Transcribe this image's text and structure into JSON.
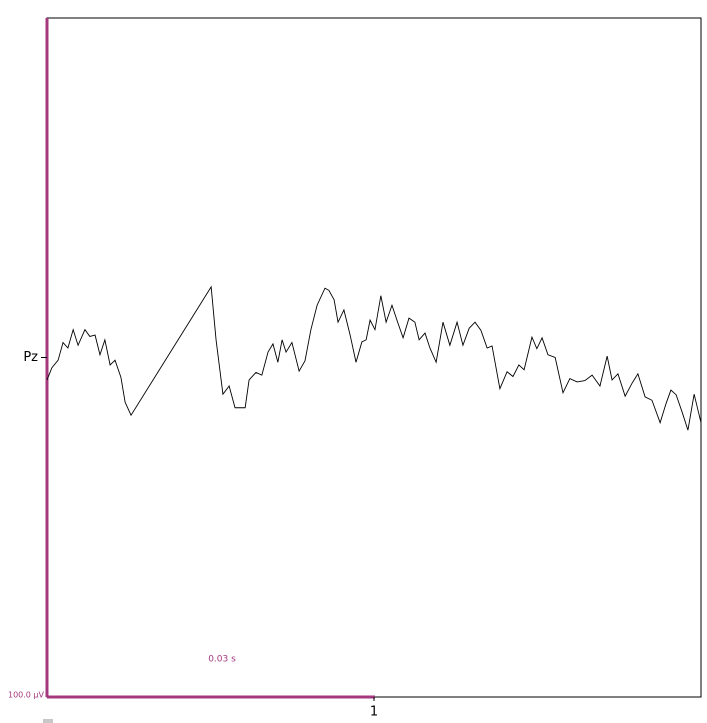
{
  "chart_data": {
    "type": "line",
    "color": "#000000",
    "scale_color": "#a3387e",
    "time_scale_label": "0.03 s",
    "amplitude_scale_label": "100.0 µV",
    "x": [
      0,
      0.015,
      0.034,
      0.049,
      0.064,
      0.08,
      0.095,
      0.116,
      0.131,
      0.147,
      0.162,
      0.177,
      0.193,
      0.208,
      0.226,
      0.239,
      0.257,
      0.502,
      0.517,
      0.538,
      0.557,
      0.575,
      0.606,
      0.618,
      0.639,
      0.657,
      0.676,
      0.691,
      0.706,
      0.719,
      0.731,
      0.749,
      0.771,
      0.789,
      0.807,
      0.826,
      0.85,
      0.862,
      0.878,
      0.89,
      0.908,
      0.927,
      0.945,
      0.963,
      0.976,
      0.988,
      1.003,
      1.021,
      1.037,
      1.055,
      1.073,
      1.089,
      1.107,
      1.125,
      1.138,
      1.156,
      1.171,
      1.19,
      1.211,
      1.232,
      1.254,
      1.272,
      1.291,
      1.309,
      1.327,
      1.346,
      1.361,
      1.385,
      1.407,
      1.425,
      1.443,
      1.459,
      1.483,
      1.498,
      1.514,
      1.532,
      1.554,
      1.578,
      1.599,
      1.621,
      1.645,
      1.667,
      1.691,
      1.713,
      1.728,
      1.746,
      1.768,
      1.789,
      1.807,
      1.829,
      1.85,
      1.875,
      1.893,
      1.908,
      1.924,
      1.942,
      1.96,
      1.979,
      2.0
    ],
    "values": [
      -3.3,
      -1.5,
      -0.4,
      2.2,
      1.4,
      4.1,
      1.8,
      4.1,
      3.1,
      3.3,
      0.4,
      2.6,
      -1.1,
      -0.4,
      -2.9,
      -6.6,
      -8.5,
      10.4,
      2.6,
      -5.4,
      -4.2,
      -7.4,
      -7.4,
      -3.3,
      -2.2,
      -2.6,
      0.8,
      2.0,
      -0.7,
      2.6,
      0.8,
      2.2,
      -2.0,
      -0.5,
      4.1,
      7.7,
      10.2,
      9.9,
      8.5,
      5.2,
      7.0,
      3.3,
      -0.7,
      2.3,
      2.6,
      5.5,
      4.1,
      9.1,
      5.2,
      7.7,
      5.1,
      2.9,
      5.8,
      5.2,
      2.6,
      3.6,
      1.4,
      -0.7,
      5.2,
      1.8,
      5.2,
      1.8,
      4.3,
      5.2,
      4.0,
      1.4,
      1.7,
      -4.6,
      -2.1,
      -2.8,
      -1.1,
      -1.8,
      3.0,
      1.3,
      2.9,
      0.4,
      0.0,
      -5.2,
      -3.1,
      -3.6,
      -3.4,
      -2.6,
      -4.2,
      0.2,
      -3.3,
      -2.4,
      -5.7,
      -3.8,
      -2.4,
      -5.8,
      -6.3,
      -9.6,
      -6.8,
      -4.8,
      -5.5,
      -8.0,
      -10.7,
      -5.4,
      -9.6
    ],
    "xlim": [
      0,
      2
    ],
    "xticks": [
      1
    ],
    "ylim": [
      -50,
      50
    ],
    "yticks": [
      {
        "value": 0,
        "label": "Pz"
      }
    ]
  }
}
